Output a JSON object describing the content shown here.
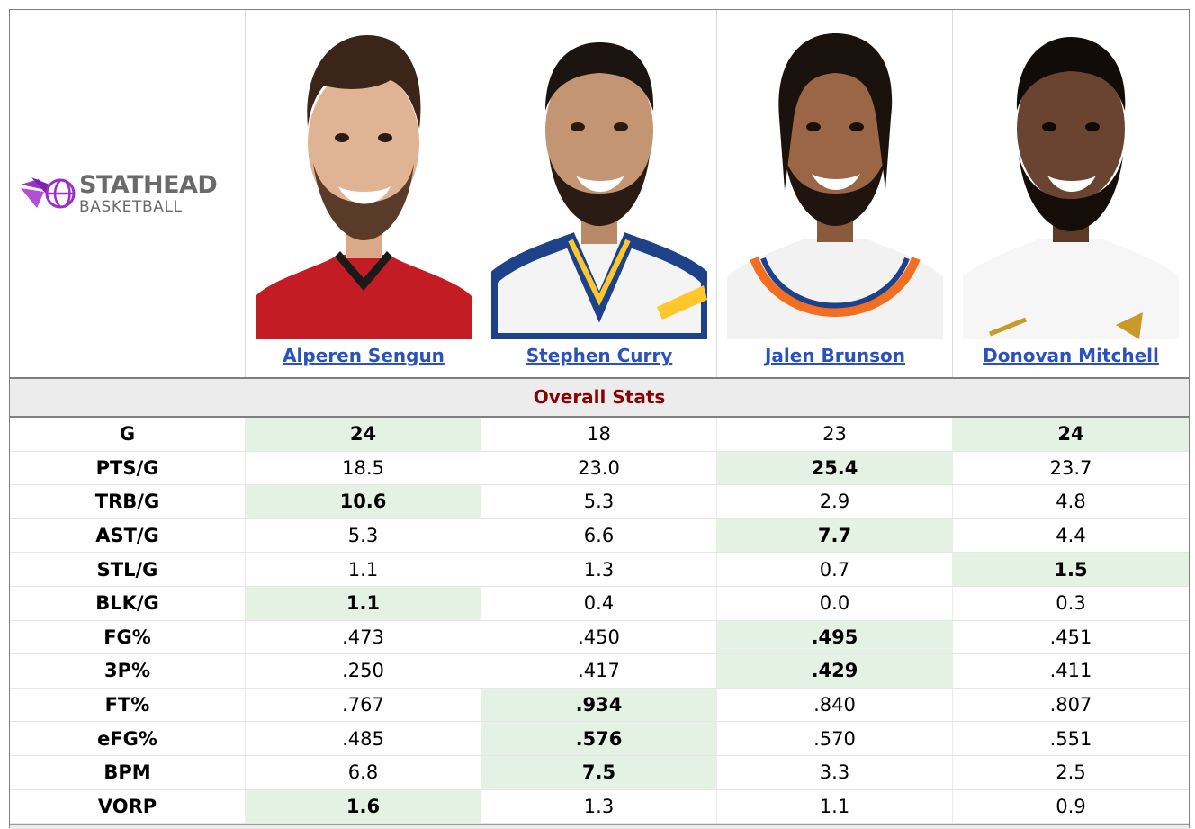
{
  "logo": {
    "line1": "STATHEAD",
    "line2": "BASKETBALL",
    "colors": {
      "purple": "#9b2fc9",
      "text": "#6a6a6a"
    }
  },
  "players": [
    {
      "name": "Alperen Sengun",
      "jersey": "red-black"
    },
    {
      "name": "Stephen Curry",
      "jersey": "white-blue-gold"
    },
    {
      "name": "Jalen Brunson",
      "jersey": "white-orange-blue"
    },
    {
      "name": "Donovan Mitchell",
      "jersey": "white-gold"
    }
  ],
  "section": {
    "title": "Overall Stats"
  },
  "stats": [
    {
      "label": "G",
      "values": [
        "24",
        "18",
        "23",
        "24"
      ],
      "best": [
        0,
        3
      ]
    },
    {
      "label": "PTS/G",
      "values": [
        "18.5",
        "23.0",
        "25.4",
        "23.7"
      ],
      "best": [
        2
      ]
    },
    {
      "label": "TRB/G",
      "values": [
        "10.6",
        "5.3",
        "2.9",
        "4.8"
      ],
      "best": [
        0
      ]
    },
    {
      "label": "AST/G",
      "values": [
        "5.3",
        "6.6",
        "7.7",
        "4.4"
      ],
      "best": [
        2
      ]
    },
    {
      "label": "STL/G",
      "values": [
        "1.1",
        "1.3",
        "0.7",
        "1.5"
      ],
      "best": [
        3
      ]
    },
    {
      "label": "BLK/G",
      "values": [
        "1.1",
        "0.4",
        "0.0",
        "0.3"
      ],
      "best": [
        0
      ]
    },
    {
      "label": "FG%",
      "values": [
        ".473",
        ".450",
        ".495",
        ".451"
      ],
      "best": [
        2
      ]
    },
    {
      "label": "3P%",
      "values": [
        ".250",
        ".417",
        ".429",
        ".411"
      ],
      "best": [
        2
      ]
    },
    {
      "label": "FT%",
      "values": [
        ".767",
        ".934",
        ".840",
        ".807"
      ],
      "best": [
        1
      ]
    },
    {
      "label": "eFG%",
      "values": [
        ".485",
        ".576",
        ".570",
        ".551"
      ],
      "best": [
        1
      ]
    },
    {
      "label": "BPM",
      "values": [
        "6.8",
        "7.5",
        "3.3",
        "2.5"
      ],
      "best": [
        1
      ]
    },
    {
      "label": "VORP",
      "values": [
        "1.6",
        "1.3",
        "1.1",
        "0.9"
      ],
      "best": [
        0
      ]
    }
  ],
  "colors": {
    "best_bg": "#e4f2e4",
    "link": "#2a52be",
    "section_title": "#8b0000",
    "section_bg": "#ececec"
  }
}
